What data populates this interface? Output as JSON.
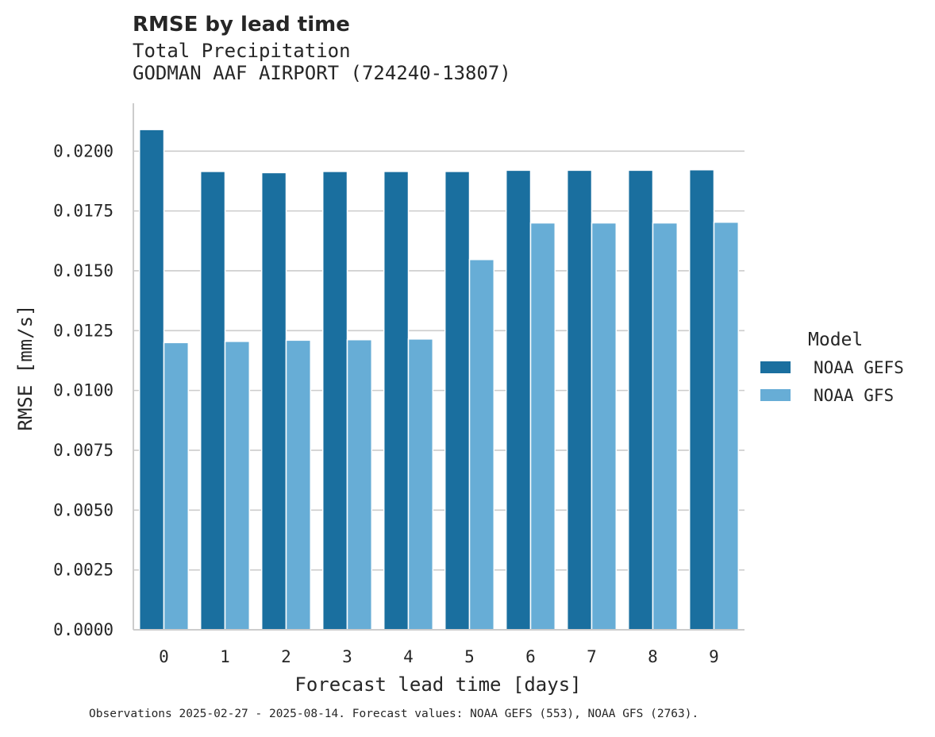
{
  "chart_data": {
    "type": "bar",
    "title": "RMSE by lead time",
    "subtitle_line1": "Total Precipitation",
    "subtitle_line2": "GODMAN AAF AIRPORT (724240-13807)",
    "xlabel": "Forecast lead time [days]",
    "ylabel": "RMSE [mm/s]",
    "categories": [
      "0",
      "1",
      "2",
      "3",
      "4",
      "5",
      "6",
      "7",
      "8",
      "9"
    ],
    "ylim": [
      0,
      0.022
    ],
    "yticks": [
      "0.0000",
      "0.0025",
      "0.0050",
      "0.0075",
      "0.0100",
      "0.0125",
      "0.0150",
      "0.0175",
      "0.0200"
    ],
    "grid": "horizontal",
    "legend_title": "Model",
    "legend_position": "right",
    "series": [
      {
        "name": "NOAA GEFS",
        "color": "#1a6f9f",
        "values": [
          0.0209,
          0.01915,
          0.0191,
          0.01915,
          0.01915,
          0.01915,
          0.0192,
          0.0192,
          0.0192,
          0.01922
        ]
      },
      {
        "name": "NOAA GFS",
        "color": "#67add6",
        "values": [
          0.012,
          0.01205,
          0.0121,
          0.01212,
          0.01215,
          0.01547,
          0.017,
          0.017,
          0.017,
          0.01703
        ]
      }
    ],
    "footnote": "Observations 2025-02-27 - 2025-08-14. Forecast values: NOAA GEFS (553), NOAA GFS (2763)."
  }
}
